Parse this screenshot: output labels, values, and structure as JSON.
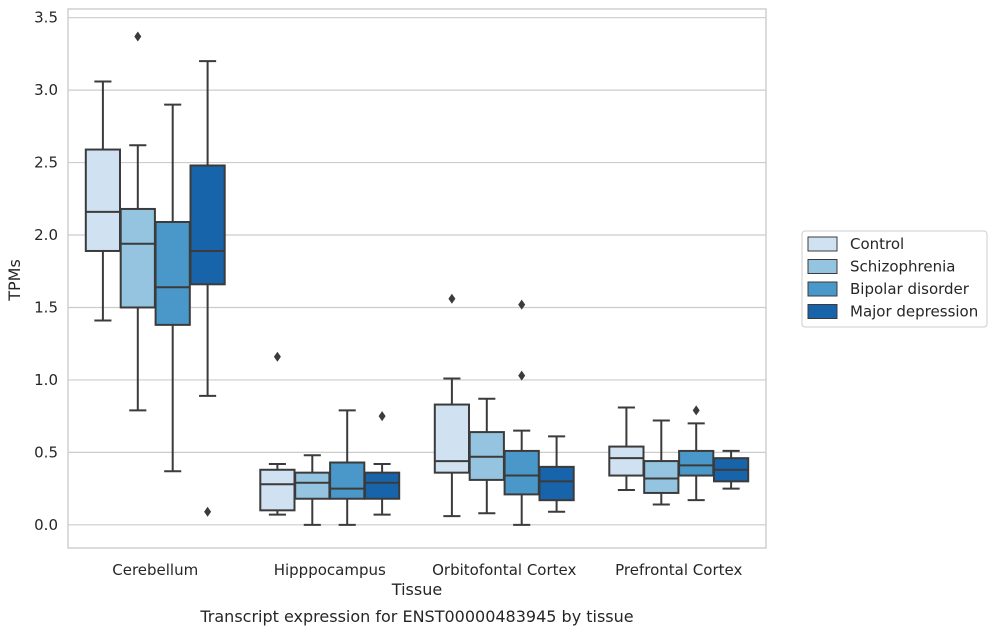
{
  "chart_data": {
    "type": "box",
    "title": "",
    "caption": "Transcript expression for ENST00000483945 by tissue",
    "xlabel": "Tissue",
    "ylabel": "TPMs",
    "ylim": [
      -0.16,
      3.56
    ],
    "yticks": [
      "0.0",
      "0.5",
      "1.0",
      "1.5",
      "2.0",
      "2.5",
      "3.0",
      "3.5"
    ],
    "ytick_values": [
      0,
      0.5,
      1.0,
      1.5,
      2.0,
      2.5,
      3.0,
      3.5
    ],
    "grid": "horizontal",
    "legend_position": "right",
    "categories": [
      "Cerebellum",
      "Hipppocampus",
      "Orbitofontal Cortex",
      "Prefrontal Cortex"
    ],
    "series": [
      {
        "name": "Control",
        "color": "#d0e1f2",
        "boxes": [
          {
            "whisker_low": 1.41,
            "q1": 1.89,
            "median": 2.16,
            "q3": 2.59,
            "whisker_high": 3.06,
            "outliers": []
          },
          {
            "whisker_low": 0.07,
            "q1": 0.1,
            "median": 0.28,
            "q3": 0.38,
            "whisker_high": 0.42,
            "outliers": [
              1.16
            ]
          },
          {
            "whisker_low": 0.06,
            "q1": 0.36,
            "median": 0.44,
            "q3": 0.83,
            "whisker_high": 1.01,
            "outliers": [
              1.56
            ]
          },
          {
            "whisker_low": 0.24,
            "q1": 0.34,
            "median": 0.46,
            "q3": 0.54,
            "whisker_high": 0.81,
            "outliers": []
          }
        ]
      },
      {
        "name": "Schizophrenia",
        "color": "#94c4df",
        "boxes": [
          {
            "whisker_low": 0.79,
            "q1": 1.5,
            "median": 1.94,
            "q3": 2.18,
            "whisker_high": 2.62,
            "outliers": [
              3.37
            ]
          },
          {
            "whisker_low": 0.0,
            "q1": 0.18,
            "median": 0.29,
            "q3": 0.36,
            "whisker_high": 0.48,
            "outliers": []
          },
          {
            "whisker_low": 0.08,
            "q1": 0.31,
            "median": 0.47,
            "q3": 0.64,
            "whisker_high": 0.87,
            "outliers": []
          },
          {
            "whisker_low": 0.14,
            "q1": 0.22,
            "median": 0.32,
            "q3": 0.44,
            "whisker_high": 0.72,
            "outliers": []
          }
        ]
      },
      {
        "name": "Bipolar disorder",
        "color": "#4a98c9",
        "boxes": [
          {
            "whisker_low": 0.37,
            "q1": 1.38,
            "median": 1.64,
            "q3": 2.09,
            "whisker_high": 2.9,
            "outliers": []
          },
          {
            "whisker_low": 0.0,
            "q1": 0.18,
            "median": 0.25,
            "q3": 0.43,
            "whisker_high": 0.79,
            "outliers": []
          },
          {
            "whisker_low": 0.0,
            "q1": 0.21,
            "median": 0.34,
            "q3": 0.51,
            "whisker_high": 0.65,
            "outliers": [
              1.03,
              1.52
            ]
          },
          {
            "whisker_low": 0.17,
            "q1": 0.34,
            "median": 0.41,
            "q3": 0.51,
            "whisker_high": 0.7,
            "outliers": [
              0.79
            ]
          }
        ]
      },
      {
        "name": "Major depression",
        "color": "#1764ab",
        "boxes": [
          {
            "whisker_low": 0.89,
            "q1": 1.66,
            "median": 1.89,
            "q3": 2.48,
            "whisker_high": 3.2,
            "outliers": [
              0.09
            ]
          },
          {
            "whisker_low": 0.07,
            "q1": 0.18,
            "median": 0.29,
            "q3": 0.36,
            "whisker_high": 0.42,
            "outliers": [
              0.75
            ]
          },
          {
            "whisker_low": 0.09,
            "q1": 0.17,
            "median": 0.3,
            "q3": 0.4,
            "whisker_high": 0.61,
            "outliers": []
          },
          {
            "whisker_low": 0.25,
            "q1": 0.3,
            "median": 0.38,
            "q3": 0.46,
            "whisker_high": 0.51,
            "outliers": []
          }
        ]
      }
    ]
  }
}
